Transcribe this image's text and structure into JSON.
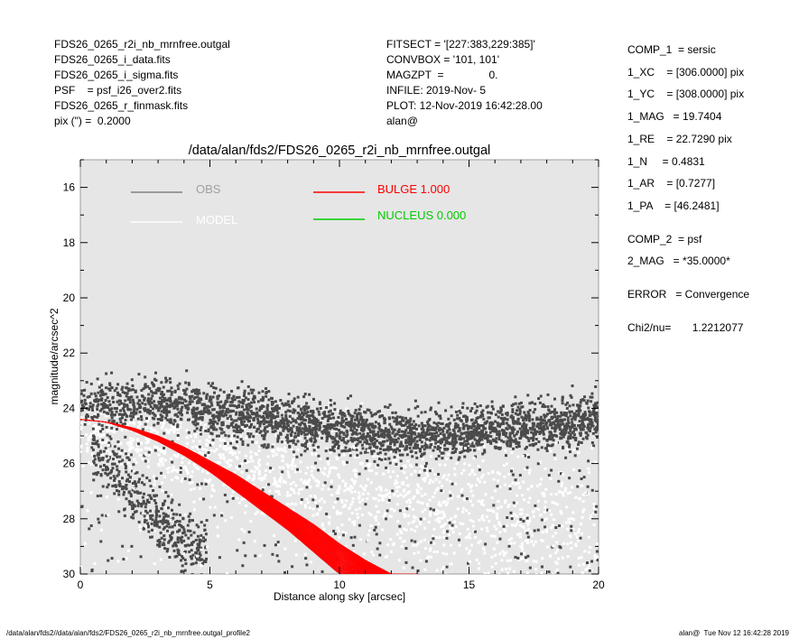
{
  "header_left": [
    "FDS26_0265_r2i_nb_mrnfree.outgal",
    "FDS26_0265_i_data.fits",
    "FDS26_0265_i_sigma.fits",
    "PSF    = psf_i26_over2.fits",
    "FDS26_0265_r_finmask.fits",
    "pix (\") =  0.2000"
  ],
  "header_mid": [
    "FITSECT = '[227:383,229:385]'",
    "CONVBOX = '101, 101'",
    "MAGZPT  =               0.",
    "INFILE: 2019-Nov- 5",
    "PLOT: 12-Nov-2019 16:42:28.00",
    "alan@"
  ],
  "right_panel": [
    "COMP_1  = sersic",
    "1_XC    = [306.0000] pix",
    "1_YC    = [308.0000] pix",
    "1_MAG   = 19.7404",
    "1_RE    = 22.7290 pix",
    "1_N     = 0.4831",
    "1_AR    = [0.7277]",
    "1_PA    = [46.2481]",
    "",
    "COMP_2  = psf",
    "2_MAG   = *35.0000*",
    "",
    "ERROR   = Convergence",
    "",
    "Chi2/nu=       1.2212077"
  ],
  "footer_left": "/data/alan/fds2//data/alan/fds2/FDS26_0265_r2i_nb_mrnfree.outgal_profile2",
  "footer_right": "alan@  Tue Nov 12 16:42:28 2019",
  "colors": {
    "plot_bg": "#e6e6e6",
    "obs": "#4a4a4a",
    "model": "#ffffff",
    "bulge": "#ff0000",
    "nucleus": "#00cc00",
    "legend_obs_text": "#a0a0a0"
  },
  "chart_data": {
    "type": "scatter",
    "title": "/data/alan/fds2/FDS26_0265_r2i_nb_mrnfree.outgal",
    "xlabel": "Distance along sky [arcsec]",
    "ylabel": "magnitude/arcsec^2",
    "xlim": [
      0,
      20
    ],
    "ylim": [
      30,
      15
    ],
    "y_inverted": true,
    "xticks": [
      "0",
      "5",
      "10",
      "15",
      "20"
    ],
    "xtick_values": [
      0,
      5,
      10,
      15,
      20
    ],
    "yticks": [
      "16",
      "18",
      "20",
      "22",
      "24",
      "26",
      "28",
      "30"
    ],
    "ytick_values": [
      16,
      18,
      20,
      22,
      24,
      26,
      28,
      30
    ],
    "legend": [
      {
        "label": "OBS",
        "color": "#a0a0a0",
        "line_color": "#808080"
      },
      {
        "label": "MODEL",
        "color": "#ffffff",
        "line_color": "#ffffff"
      },
      {
        "label": "BULGE  1.000",
        "color": "#ff0000",
        "line_color": "#ff0000"
      },
      {
        "label": "NUCLEUS  0.000",
        "color": "#00cc00",
        "line_color": "#00cc00"
      }
    ],
    "series": [
      {
        "name": "OBS",
        "x": [
          0.3,
          0.8,
          1.2,
          1.6,
          2.0,
          2.5,
          3.0,
          3.5,
          4.0,
          4.5,
          5.0,
          6.0,
          7.0,
          8.0,
          9.0,
          10.0,
          11.0,
          12.0,
          13.0,
          14.0,
          15.0,
          16.0,
          17.0,
          18.0,
          19.0,
          19.9,
          0.5,
          1.0,
          1.5,
          2.0,
          2.5,
          3.0,
          3.5,
          4.0
        ],
        "y": [
          24.0,
          23.8,
          23.9,
          24.0,
          23.8,
          23.9,
          23.7,
          23.8,
          23.9,
          24.0,
          24.1,
          24.2,
          24.3,
          24.5,
          24.6,
          24.8,
          24.9,
          25.0,
          25.0,
          25.0,
          24.9,
          24.8,
          24.7,
          24.6,
          24.5,
          24.4,
          25.5,
          26.0,
          26.5,
          27.0,
          27.5,
          28.0,
          28.5,
          29.0
        ]
      },
      {
        "name": "MODEL",
        "x": [
          0.0,
          1.0,
          2.0,
          3.0,
          4.0,
          5.0,
          6.0,
          7.0,
          8.0,
          9.0,
          10.0,
          11.0,
          12.0,
          13.0,
          14.0,
          15.0,
          16.0,
          17.0,
          18.0,
          19.0,
          20.0
        ],
        "y": [
          24.6,
          24.9,
          25.1,
          25.4,
          25.6,
          25.8,
          26.0,
          26.2,
          26.4,
          26.6,
          26.8,
          27.0,
          27.2,
          27.4,
          27.6,
          27.8,
          28.0,
          28.2,
          28.4,
          28.6,
          28.8
        ]
      },
      {
        "name": "BULGE",
        "x": [
          0.0,
          1.0,
          2.0,
          3.0,
          4.0,
          5.0,
          6.0,
          7.0,
          8.0,
          9.0,
          10.0,
          11.0,
          12.0,
          13.0
        ],
        "y": [
          24.4,
          24.5,
          24.7,
          25.0,
          25.4,
          25.9,
          26.4,
          27.0,
          27.6,
          28.2,
          28.9,
          29.5,
          30.0,
          30.0
        ],
        "y_steep_edge": [
          24.4,
          24.5,
          24.8,
          25.2,
          25.7,
          26.3,
          27.0,
          27.7,
          28.4,
          29.2,
          30.0,
          30.0,
          30.0,
          30.0
        ]
      }
    ]
  }
}
